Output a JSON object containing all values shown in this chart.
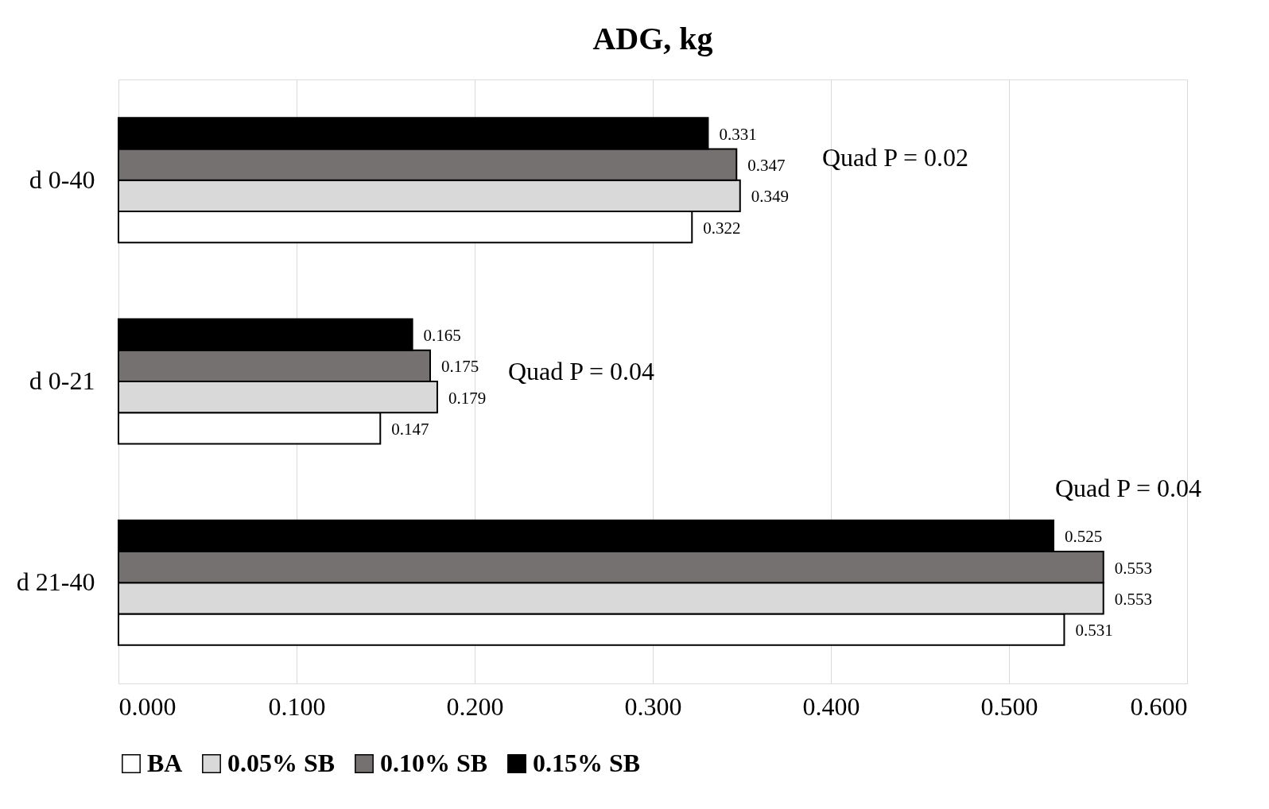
{
  "chart_data": {
    "type": "bar",
    "orientation": "horizontal",
    "title": "ADG, kg",
    "categories": [
      "d 0-40",
      "d 0-21",
      "d 21-40"
    ],
    "series": [
      {
        "name": "BA",
        "color": "#ffffff",
        "values": [
          0.322,
          0.147,
          0.531
        ]
      },
      {
        "name": "0.05% SB",
        "color": "#d9d9d9",
        "values": [
          0.349,
          0.179,
          0.553
        ]
      },
      {
        "name": "0.10% SB",
        "color": "#767171",
        "values": [
          0.347,
          0.175,
          0.553
        ]
      },
      {
        "name": "0.15% SB",
        "color": "#000000",
        "values": [
          0.331,
          0.165,
          0.525
        ]
      }
    ],
    "xlim": [
      0,
      0.6
    ],
    "xticks": [
      {
        "value": 0,
        "label": "0.000"
      },
      {
        "value": 0.1,
        "label": "0.100"
      },
      {
        "value": 0.2,
        "label": "0.200"
      },
      {
        "value": 0.3,
        "label": "0.300"
      },
      {
        "value": 0.4,
        "label": "0.400"
      },
      {
        "value": 0.5,
        "label": "0.500"
      },
      {
        "value": 0.6,
        "label": "0.600"
      }
    ],
    "grid": "x",
    "legend": "bottom",
    "data_labels": true,
    "annotations": [
      "Quad P = 0.02",
      "Quad P = 0.04",
      "Quad P = 0.04"
    ]
  }
}
